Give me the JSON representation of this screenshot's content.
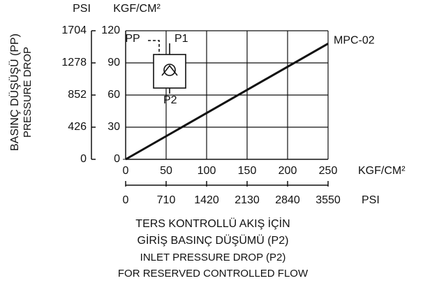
{
  "chart_data": {
    "type": "line",
    "y_unit": "KGF/CM²",
    "y2_unit": "PSI",
    "y_label": [
      "BASINÇ DÜŞÜŞÜ (PP)",
      "PRESSURE DROP"
    ],
    "x_unit": "KGF/CM²",
    "x2_unit": "PSI",
    "x_label": [
      "TERS KONTROLLÜ AKIŞ İÇİN",
      "GİRİŞ BASINÇ DÜŞÜMÜ (P2)",
      "INLET PRESSURE DROP (P2)",
      "FOR RESERVED CONTROLLED FLOW"
    ],
    "x": [
      0,
      250
    ],
    "series": [
      {
        "name": "MPC-02",
        "color": "#111111",
        "values": [
          0,
          108
        ]
      }
    ],
    "xlim": [
      0,
      250
    ],
    "xticks": [
      0,
      50,
      100,
      150,
      200,
      250
    ],
    "x2lim": [
      0,
      3550
    ],
    "x2ticks": [
      0,
      710,
      1420,
      2130,
      2840,
      3550
    ],
    "ylim": [
      0,
      120
    ],
    "yticks": [
      0,
      30,
      60,
      90,
      120
    ],
    "y2lim": [
      0,
      1704
    ],
    "y2ticks": [
      0,
      426,
      852,
      1278,
      1704
    ],
    "grid": true,
    "inset_labels": [
      "PP",
      "P1",
      "P2"
    ]
  }
}
